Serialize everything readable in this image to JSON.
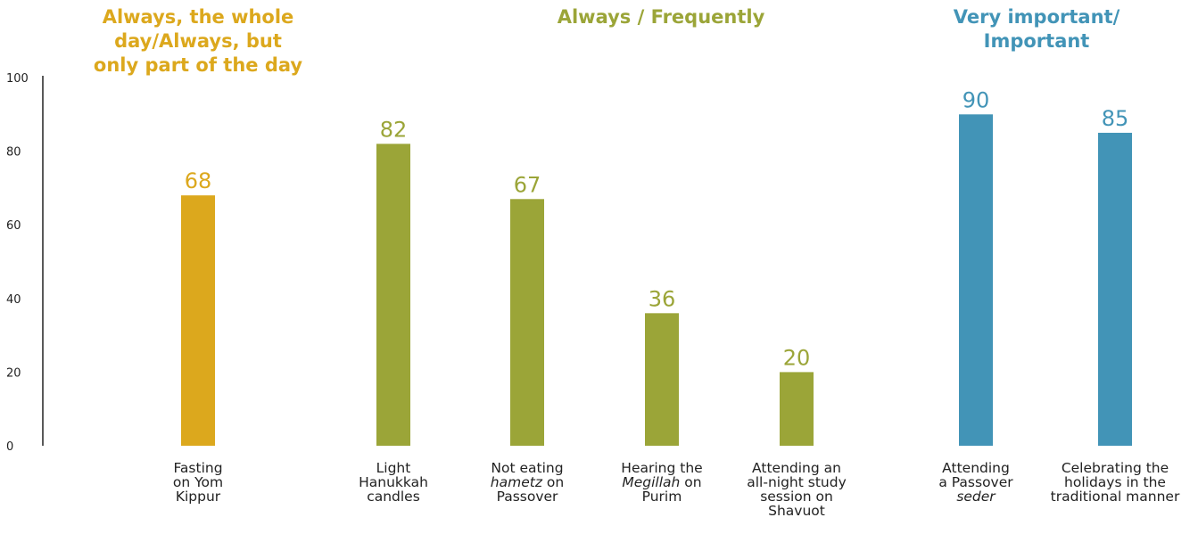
{
  "chart_data": {
    "type": "bar",
    "ylim": [
      0,
      100
    ],
    "yticks": [
      0,
      20,
      40,
      60,
      80,
      100
    ],
    "grid": false,
    "colors": {
      "yellow": "#dca81d",
      "olive": "#9ba538",
      "blue": "#4294b7",
      "axis": "#222222"
    },
    "groups": [
      {
        "title": "Always, the whole day/Always, but only part of the day",
        "title_lines": [
          "Always, the whole",
          "day/Always, but",
          "only part of the day"
        ],
        "color": "#dca81d"
      },
      {
        "title": "Always / Frequently",
        "title_lines": [
          "Always / Frequently"
        ],
        "color": "#9ba538"
      },
      {
        "title": "Very important/ Important",
        "title_lines": [
          "Very important/",
          "Important"
        ],
        "color": "#4294b7"
      }
    ],
    "categories": [
      "Fasting on Yom Kippur",
      "Light Hanukkah candles",
      "Not eating hametz on Passover",
      "Hearing the Megillah on Purim",
      "Attending an all-night study session on Shavuot",
      "Attending a Passover seder",
      "Celebrating the holidays in the traditional manner"
    ],
    "values": [
      68,
      82,
      67,
      36,
      20,
      90,
      85
    ],
    "bar_group": [
      0,
      1,
      1,
      1,
      1,
      2,
      2
    ],
    "category_lines": [
      [
        [
          "Fasting"
        ],
        [
          "on Yom"
        ],
        [
          "Kippur"
        ]
      ],
      [
        [
          "Light"
        ],
        [
          "Hanukkah"
        ],
        [
          "candles"
        ]
      ],
      [
        [
          "Not eating"
        ],
        [
          "*hametz",
          " on"
        ],
        [
          "Passover"
        ]
      ],
      [
        [
          "Hearing the"
        ],
        [
          "*Megillah",
          " on"
        ],
        [
          "Purim"
        ]
      ],
      [
        [
          "Attending an"
        ],
        [
          "all-night study"
        ],
        [
          "session on"
        ],
        [
          "Shavuot"
        ]
      ],
      [
        [
          "Attending"
        ],
        [
          "a Passover"
        ],
        [
          "*seder"
        ]
      ],
      [
        [
          "Celebrating the"
        ],
        [
          "holidays in the"
        ],
        [
          "traditional manner"
        ]
      ]
    ]
  }
}
